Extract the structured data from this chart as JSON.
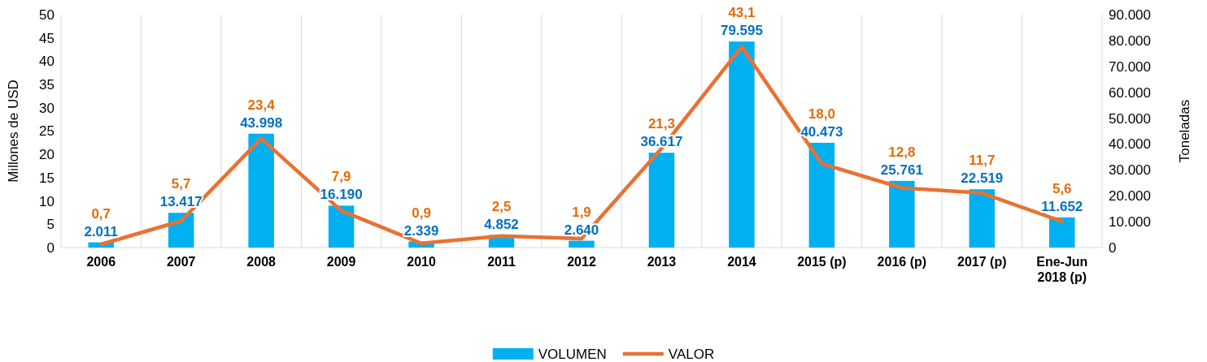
{
  "chart_data": {
    "type": "bar",
    "categories": [
      "2006",
      "2007",
      "2008",
      "2009",
      "2010",
      "2011",
      "2012",
      "2013",
      "2014",
      "2015 (p)",
      "2016 (p)",
      "2017 (p)",
      "Ene-Jun 2018 (p)"
    ],
    "ylabel": "Millones de USD",
    "y2label": "Toneladas",
    "ylim": [
      0,
      50
    ],
    "yticks": [
      0,
      5,
      10,
      15,
      20,
      25,
      30,
      35,
      40,
      45,
      50
    ],
    "y2lim": [
      0,
      90000
    ],
    "y2ticks": [
      {
        "value": 0,
        "label": "0"
      },
      {
        "value": 10000,
        "label": "10.000"
      },
      {
        "value": 20000,
        "label": "20.000"
      },
      {
        "value": 30000,
        "label": "30.000"
      },
      {
        "value": 40000,
        "label": "40.000"
      },
      {
        "value": 50000,
        "label": "50.000"
      },
      {
        "value": 60000,
        "label": "60.000"
      },
      {
        "value": 70000,
        "label": "70.000"
      },
      {
        "value": 80000,
        "label": "80.000"
      },
      {
        "value": 90000,
        "label": "90.000"
      }
    ],
    "grid": "x",
    "legend": "bottom",
    "series": [
      {
        "name": "VOLUMEN",
        "axis": "y2",
        "color": "#00b0f0",
        "values": [
          2011,
          13417,
          43998,
          16190,
          2339,
          4852,
          2640,
          36617,
          79595,
          40473,
          25761,
          22519,
          11652
        ],
        "value_labels": [
          "2.011",
          "13.417",
          "43.998",
          "16.190",
          "2.339",
          "4.852",
          "2.640",
          "36.617",
          "79.595",
          "40.473",
          "25.761",
          "22.519",
          "11.652"
        ]
      },
      {
        "name": "VALOR",
        "type": "line",
        "axis": "y",
        "color": "#e97132",
        "values": [
          0.7,
          5.7,
          23.4,
          7.9,
          0.9,
          2.5,
          1.9,
          21.3,
          43.1,
          18.0,
          12.8,
          11.7,
          5.6
        ],
        "value_labels": [
          "0,7",
          "5,7",
          "23,4",
          "7,9",
          "0,9",
          "2,5",
          "1,9",
          "21,3",
          "43,1",
          "18,0",
          "12,8",
          "11,7",
          "5,6"
        ]
      }
    ]
  }
}
